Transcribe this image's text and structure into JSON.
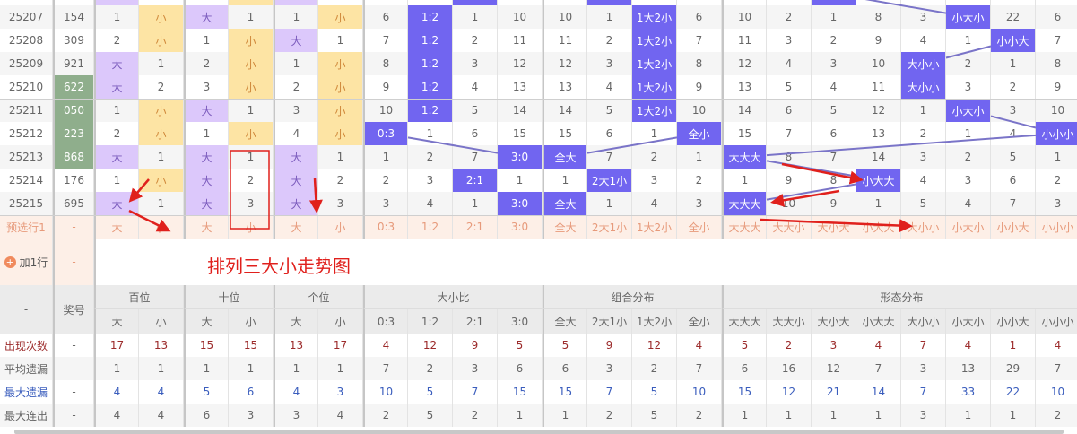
{
  "title": "排列三大小走势图",
  "colors": {
    "big": "#dcc8fb",
    "small": "#fde4a4",
    "hit": "#7165f0",
    "number_highlight": "#8fae8c",
    "line": "#7a74c8",
    "annotation": "#e0201c"
  },
  "rows": [
    {
      "period": "25207",
      "number": "154",
      "green": false,
      "bai": [
        "1",
        "小"
      ],
      "shi": [
        "大",
        "1"
      ],
      "ge": [
        "1",
        "小"
      ],
      "ratio": [
        "6",
        "1:2",
        "1",
        "10"
      ],
      "combo": [
        "10",
        "1",
        "1大2小",
        "6"
      ],
      "shape": [
        "10",
        "2",
        "1",
        "8",
        "3",
        "小大小",
        "22",
        "6"
      ]
    },
    {
      "period": "25208",
      "number": "309",
      "green": false,
      "bai": [
        "2",
        "小"
      ],
      "shi": [
        "1",
        "小"
      ],
      "ge": [
        "大",
        "1"
      ],
      "ratio": [
        "7",
        "1:2",
        "2",
        "11"
      ],
      "combo": [
        "11",
        "2",
        "1大2小",
        "7"
      ],
      "shape": [
        "11",
        "3",
        "2",
        "9",
        "4",
        "1",
        "小小大",
        "7"
      ]
    },
    {
      "period": "25209",
      "number": "921",
      "green": false,
      "bai": [
        "大",
        "1"
      ],
      "shi": [
        "2",
        "小"
      ],
      "ge": [
        "1",
        "小"
      ],
      "ratio": [
        "8",
        "1:2",
        "3",
        "12"
      ],
      "combo": [
        "12",
        "3",
        "1大2小",
        "8"
      ],
      "shape": [
        "12",
        "4",
        "3",
        "10",
        "大小小",
        "2",
        "1",
        "8"
      ]
    },
    {
      "period": "25210",
      "number": "622",
      "green": true,
      "bai": [
        "大",
        "2"
      ],
      "shi": [
        "3",
        "小"
      ],
      "ge": [
        "2",
        "小"
      ],
      "ratio": [
        "9",
        "1:2",
        "4",
        "13"
      ],
      "combo": [
        "13",
        "4",
        "1大2小",
        "9"
      ],
      "shape": [
        "13",
        "5",
        "4",
        "11",
        "大小小",
        "3",
        "2",
        "9"
      ]
    },
    {
      "period": "25211",
      "number": "050",
      "green": true,
      "bai": [
        "1",
        "小"
      ],
      "shi": [
        "大",
        "1"
      ],
      "ge": [
        "3",
        "小"
      ],
      "ratio": [
        "10",
        "1:2",
        "5",
        "14"
      ],
      "combo": [
        "14",
        "5",
        "1大2小",
        "10"
      ],
      "shape": [
        "14",
        "6",
        "5",
        "12",
        "1",
        "小大小",
        "3",
        "10"
      ]
    },
    {
      "period": "25212",
      "number": "223",
      "green": true,
      "bai": [
        "2",
        "小"
      ],
      "shi": [
        "1",
        "小"
      ],
      "ge": [
        "4",
        "小"
      ],
      "ratio": [
        "0:3",
        "1",
        "6",
        "15"
      ],
      "combo": [
        "15",
        "6",
        "1",
        "全小"
      ],
      "shape": [
        "15",
        "7",
        "6",
        "13",
        "2",
        "1",
        "4",
        "小小小"
      ]
    },
    {
      "period": "25213",
      "number": "868",
      "green": true,
      "bai": [
        "大",
        "1"
      ],
      "shi": [
        "大",
        "1"
      ],
      "ge": [
        "大",
        "1"
      ],
      "ratio": [
        "1",
        "2",
        "7",
        "3:0"
      ],
      "combo": [
        "全大",
        "7",
        "2",
        "1"
      ],
      "shape": [
        "大大大",
        "8",
        "7",
        "14",
        "3",
        "2",
        "5",
        "1"
      ]
    },
    {
      "period": "25214",
      "number": "176",
      "green": false,
      "bai": [
        "1",
        "小"
      ],
      "shi": [
        "大",
        "2"
      ],
      "ge": [
        "大",
        "2"
      ],
      "ratio": [
        "2",
        "3",
        "2:1",
        "1"
      ],
      "combo": [
        "1",
        "2大1小",
        "3",
        "2"
      ],
      "shape": [
        "1",
        "9",
        "8",
        "小大大",
        "4",
        "3",
        "6",
        "2"
      ]
    },
    {
      "period": "25215",
      "number": "695",
      "green": false,
      "bai": [
        "大",
        "1"
      ],
      "shi": [
        "大",
        "3"
      ],
      "ge": [
        "大",
        "3"
      ],
      "ratio": [
        "3",
        "4",
        "1",
        "3:0"
      ],
      "combo": [
        "全大",
        "1",
        "4",
        "3"
      ],
      "shape": [
        "大大大",
        "10",
        "9",
        "1",
        "5",
        "4",
        "7",
        "3"
      ]
    }
  ],
  "preselect": {
    "label": "预选行1",
    "number": "-",
    "cells": [
      "大",
      "小",
      "大",
      "小",
      "大",
      "小",
      "0:3",
      "1:2",
      "2:1",
      "3:0",
      "全大",
      "2大1小",
      "1大2小",
      "全小",
      "大大大",
      "大大小",
      "大小大",
      "小大大",
      "大小小",
      "小大小",
      "小小大",
      "小小小"
    ]
  },
  "add_row": {
    "label": "加1行",
    "number": "-"
  },
  "stats_header": {
    "first": "-",
    "number": "奖号",
    "groups": [
      "百位",
      "十位",
      "个位",
      "大小比",
      "组合分布",
      "形态分布"
    ],
    "sub": [
      "大",
      "小",
      "大",
      "小",
      "大",
      "小",
      "0:3",
      "1:2",
      "2:1",
      "3:0",
      "全大",
      "2大1小",
      "1大2小",
      "全小",
      "大大大",
      "大大小",
      "大小大",
      "小大大",
      "大小小",
      "小大小",
      "小小大",
      "小小小"
    ]
  },
  "stats": [
    {
      "label": "出现次数",
      "number": "-",
      "values": [
        "17",
        "13",
        "15",
        "15",
        "13",
        "17",
        "4",
        "12",
        "9",
        "5",
        "5",
        "9",
        "12",
        "4",
        "5",
        "2",
        "3",
        "4",
        "7",
        "4",
        "1",
        "4"
      ]
    },
    {
      "label": "平均遗漏",
      "number": "-",
      "values": [
        "1",
        "1",
        "1",
        "1",
        "1",
        "1",
        "7",
        "2",
        "3",
        "6",
        "6",
        "3",
        "2",
        "7",
        "6",
        "16",
        "12",
        "7",
        "3",
        "13",
        "29",
        "7"
      ]
    },
    {
      "label": "最大遗漏",
      "number": "-",
      "values": [
        "4",
        "4",
        "5",
        "6",
        "4",
        "3",
        "10",
        "5",
        "7",
        "15",
        "15",
        "7",
        "5",
        "10",
        "15",
        "12",
        "21",
        "14",
        "7",
        "33",
        "22",
        "10"
      ]
    },
    {
      "label": "最大连出",
      "number": "-",
      "values": [
        "4",
        "4",
        "6",
        "3",
        "3",
        "4",
        "2",
        "5",
        "2",
        "1",
        "1",
        "2",
        "5",
        "2",
        "1",
        "1",
        "1",
        "1",
        "3",
        "1",
        "1",
        "2"
      ]
    }
  ]
}
